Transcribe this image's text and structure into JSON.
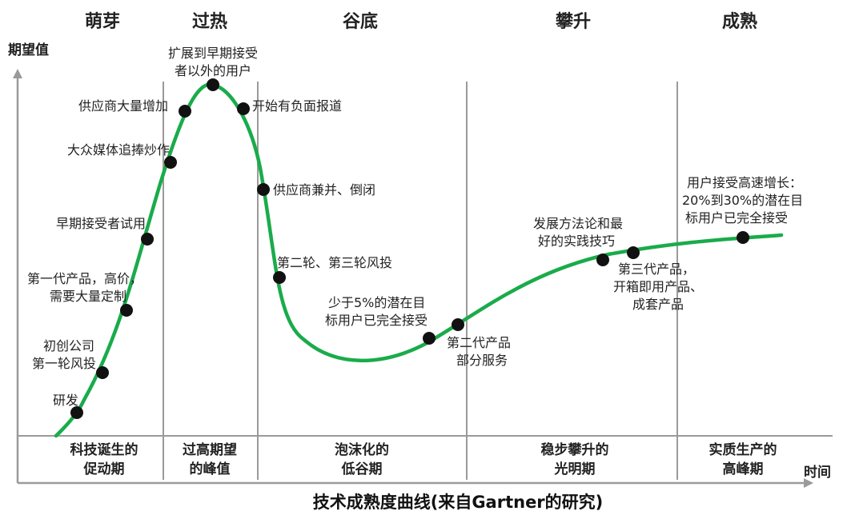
{
  "title": "技术成熟度曲线(来自Gartner的研究)",
  "axes": {
    "y_label": "期望值",
    "x_label": "时间"
  },
  "phases_top": [
    "萌芽",
    "过热",
    "谷底",
    "攀升",
    "成熟"
  ],
  "phases_bottom": [
    {
      "line1": "科技诞生的",
      "line2": "促动期"
    },
    {
      "line1": "过高期望",
      "line2": "的峰值"
    },
    {
      "line1": "泡沫化的",
      "line2": "低谷期"
    },
    {
      "line1": "稳步攀升的",
      "line2": "光明期"
    },
    {
      "line1": "实质生产的",
      "line2": "高峰期"
    }
  ],
  "annotations": [
    {
      "lines": [
        "研发"
      ]
    },
    {
      "lines": [
        "初创公司",
        "第一轮风投"
      ]
    },
    {
      "lines": [
        "第一代产品，高价，",
        "需要大量定制"
      ]
    },
    {
      "lines": [
        "早期接受者试用"
      ]
    },
    {
      "lines": [
        "大众媒体追捧炒作"
      ]
    },
    {
      "lines": [
        "供应商大量增加"
      ]
    },
    {
      "lines": [
        "扩展到早期接受",
        "者以外的用户"
      ]
    },
    {
      "lines": [
        "开始有负面报道"
      ]
    },
    {
      "lines": [
        "供应商兼并、倒闭"
      ]
    },
    {
      "lines": [
        "第二轮、第三轮风投"
      ]
    },
    {
      "lines": [
        "少于5%的潜在目",
        "标用户已完全接受"
      ]
    },
    {
      "lines": [
        "第二代产品",
        "部分服务"
      ]
    },
    {
      "lines": [
        "发展方法论和最",
        "好的实践技巧"
      ]
    },
    {
      "lines": [
        "第三代产品，",
        "开箱即用产品、",
        "成套产品"
      ]
    },
    {
      "lines": [
        "用户接受高速增长：",
        "20%到30%的潜在目",
        "标用户已完全接受"
      ]
    }
  ],
  "colors": {
    "curve": "#1aab4b",
    "divider": "#9a9a9a",
    "axis": "#9a9a9a"
  }
}
